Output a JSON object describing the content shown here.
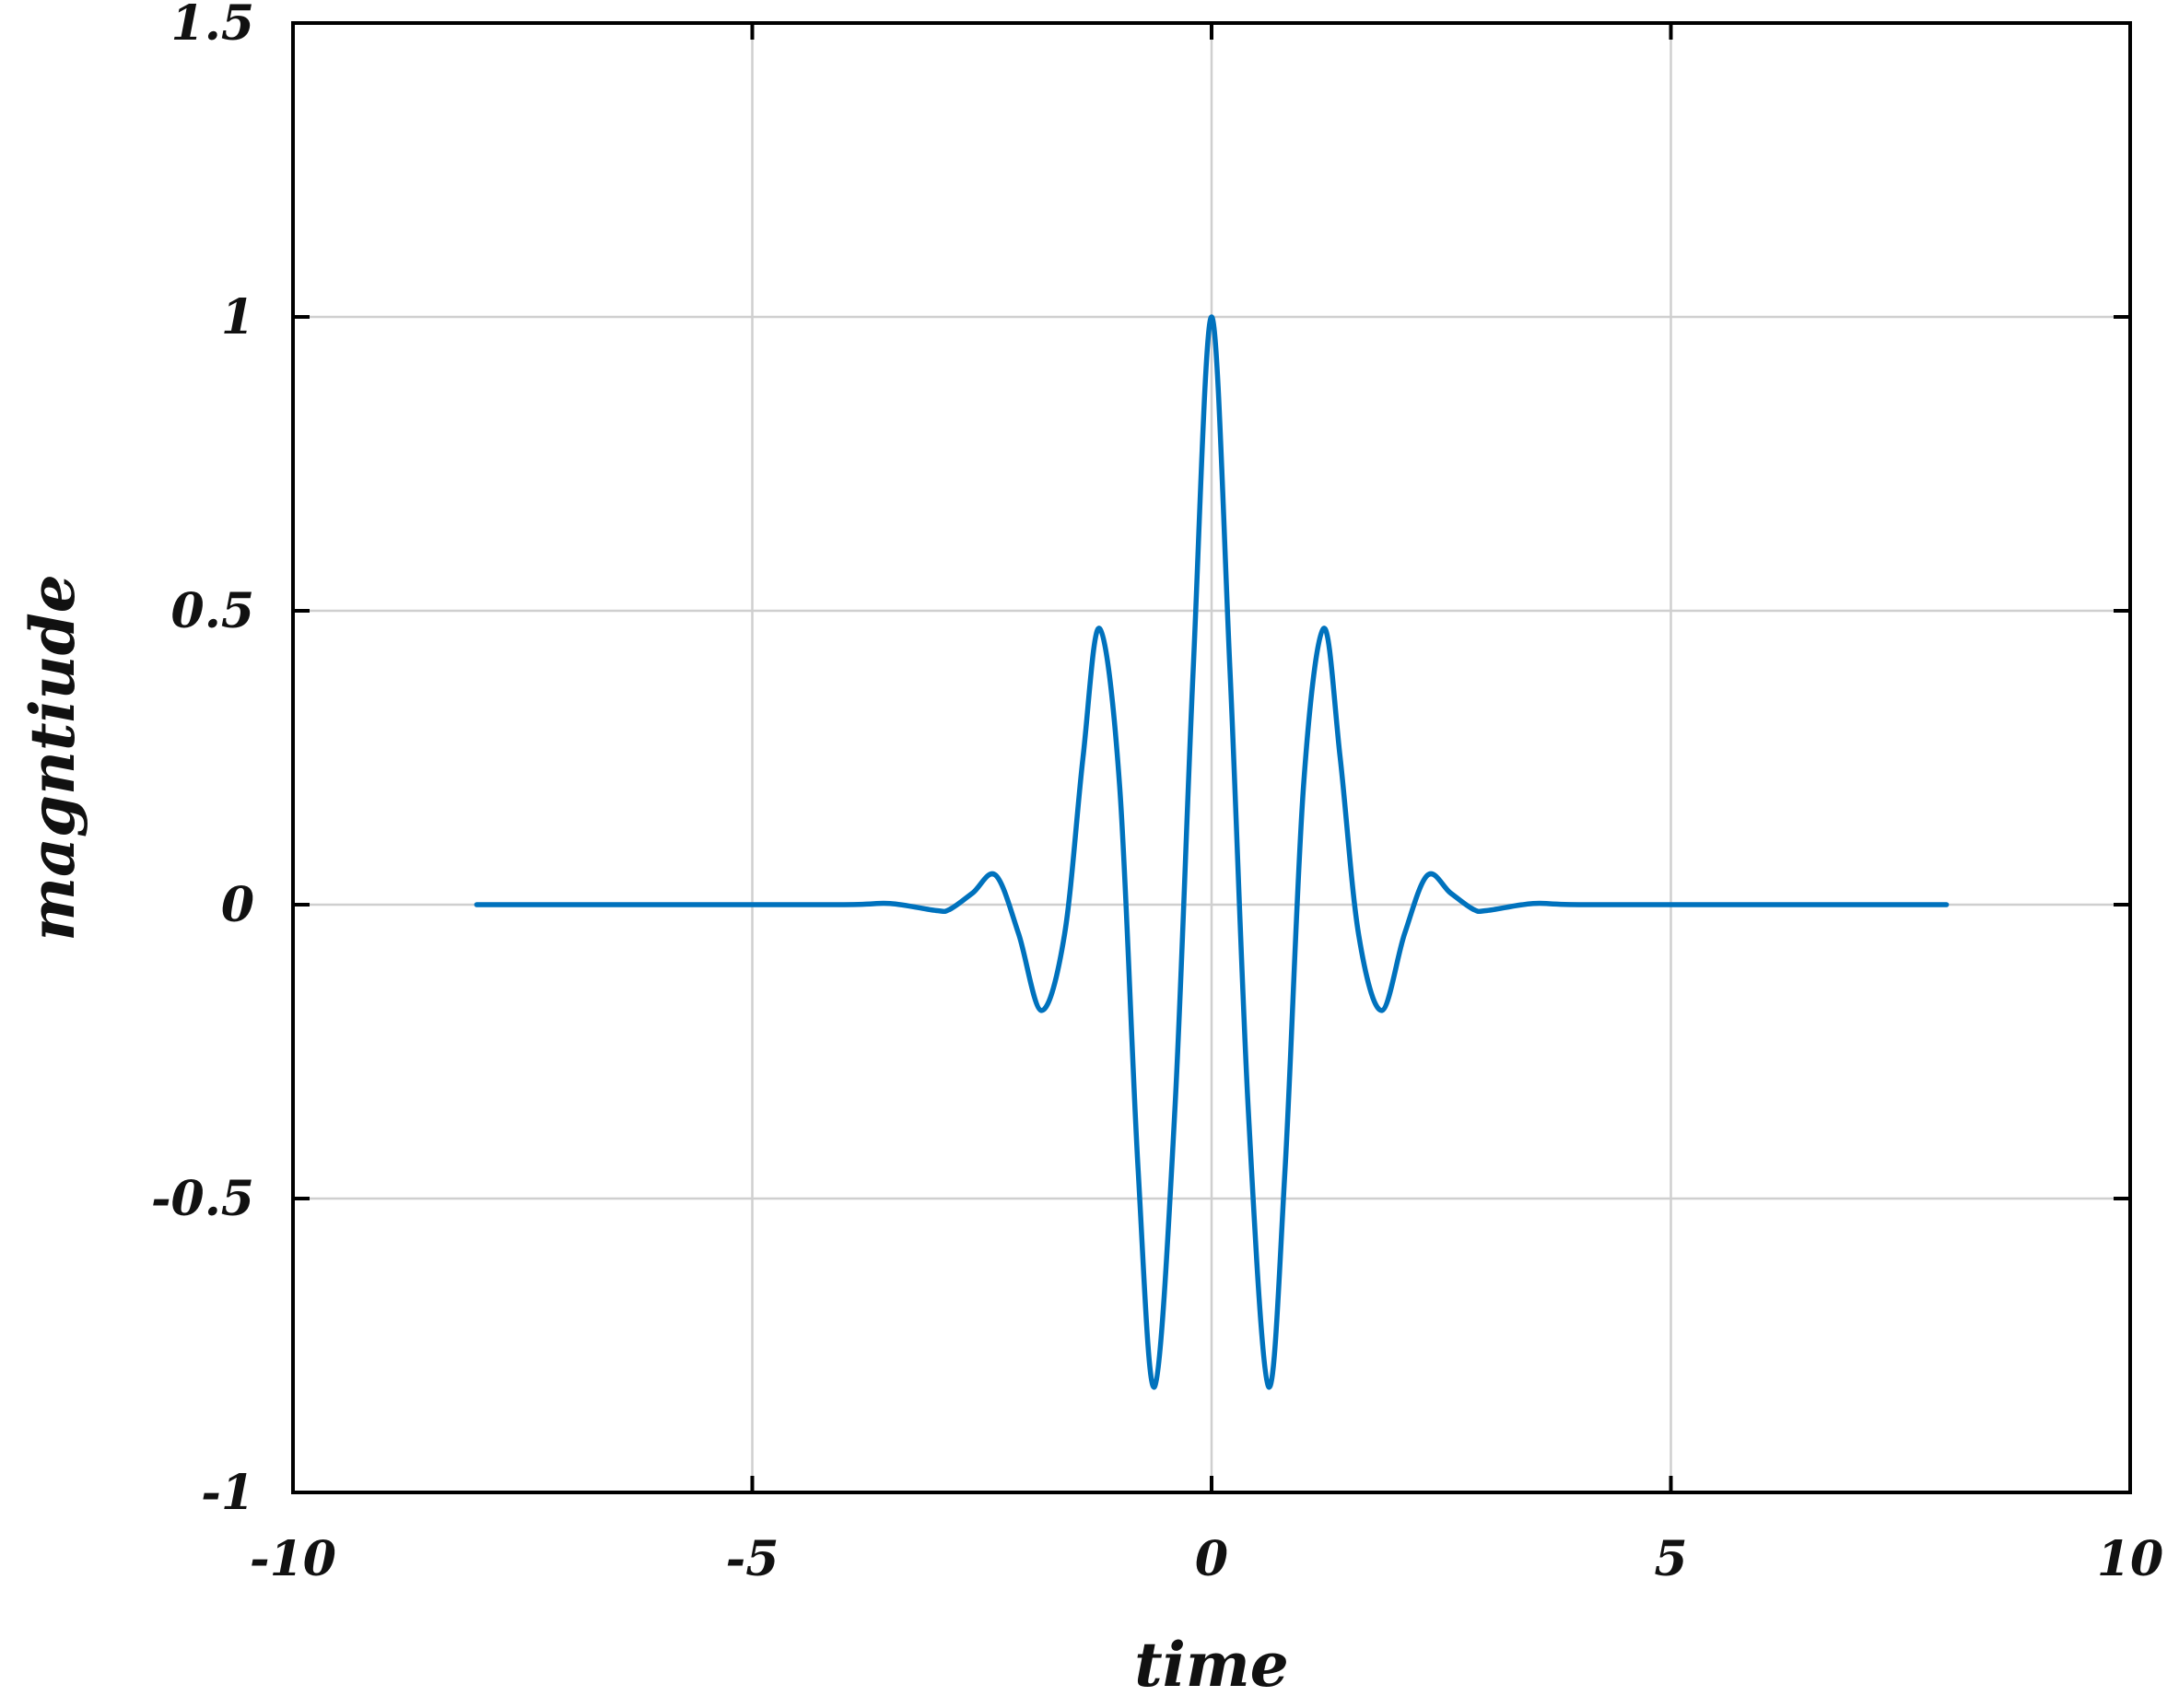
{
  "chart_data": {
    "type": "line",
    "title": "",
    "xlabel": "time",
    "ylabel": "magntiude",
    "xlim": [
      -10,
      10
    ],
    "ylim": [
      -1,
      1.5
    ],
    "grid": true,
    "legend": "none",
    "x_ticks": [
      -10,
      -5,
      0,
      5,
      10
    ],
    "x_tick_labels": [
      "-10",
      "-5",
      "0",
      "5",
      "10"
    ],
    "y_ticks": [
      -1,
      -0.5,
      0,
      0.5,
      1,
      1.5
    ],
    "y_tick_labels": [
      "-1",
      "-0.5",
      "0",
      "0.5",
      "1",
      "1.5"
    ],
    "line_color": "#0072BD",
    "grid_color": "#cfcfcf",
    "axis_color": "#000000",
    "series": [
      {
        "x": [
          -8,
          -6,
          -4,
          -3.5,
          -3,
          -2.85,
          -2.6,
          -2.35,
          -2.1,
          -1.85,
          -1.6,
          -1.4,
          -1.22,
          -1.0,
          -0.8,
          -0.62,
          -0.4,
          -0.2,
          0,
          0.2,
          0.4,
          0.62,
          0.8,
          1.0,
          1.22,
          1.4,
          1.6,
          1.85,
          2.1,
          2.35,
          2.6,
          2.85,
          3,
          3.5,
          4,
          6,
          8
        ],
        "y": [
          0,
          0,
          0,
          0.002,
          -0.01,
          -0.008,
          0.02,
          0.05,
          -0.05,
          -0.18,
          -0.05,
          0.25,
          0.47,
          0.2,
          -0.45,
          -0.82,
          -0.35,
          0.4,
          1.0,
          0.4,
          -0.35,
          -0.82,
          -0.45,
          0.2,
          0.47,
          0.25,
          -0.05,
          -0.18,
          -0.05,
          0.05,
          0.02,
          -0.008,
          -0.01,
          0.002,
          0,
          0,
          0
        ]
      }
    ]
  }
}
